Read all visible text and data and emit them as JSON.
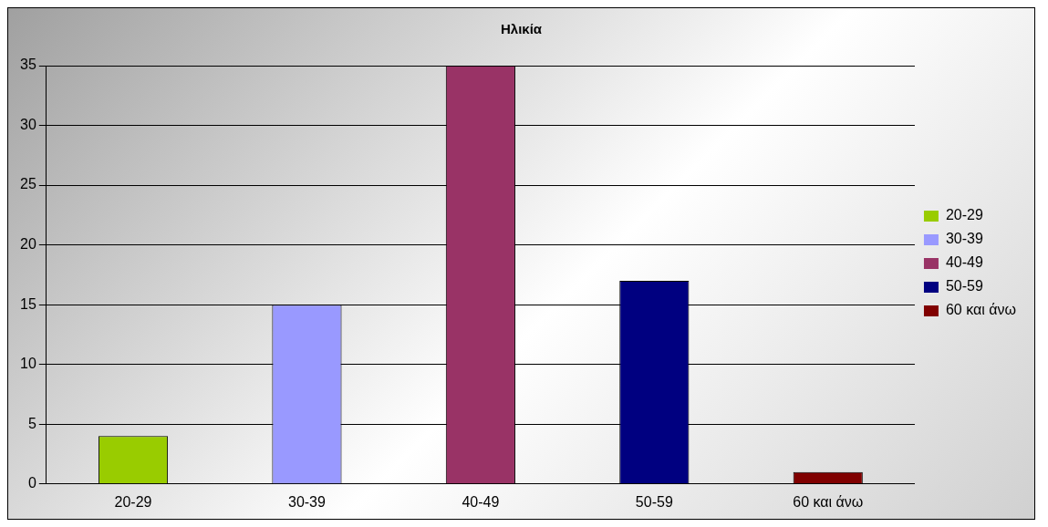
{
  "chart_data": {
    "type": "bar",
    "title": "Ηλικία",
    "categories": [
      "20-29",
      "30-39",
      "40-49",
      "50-59",
      "60 και άνω"
    ],
    "series": [
      {
        "name": "20-29",
        "color": "#99cc00",
        "values": [
          4,
          null,
          null,
          null,
          null
        ]
      },
      {
        "name": "30-39",
        "color": "#9999ff",
        "values": [
          null,
          15,
          null,
          null,
          null
        ]
      },
      {
        "name": "40-49",
        "color": "#993366",
        "values": [
          null,
          null,
          35,
          null,
          null
        ]
      },
      {
        "name": "50-59",
        "color": "#000080",
        "values": [
          null,
          null,
          null,
          17,
          null
        ]
      },
      {
        "name": "60 και άνω",
        "color": "#800000",
        "values": [
          null,
          null,
          null,
          null,
          1
        ]
      }
    ],
    "ylim": [
      0,
      35
    ],
    "yticks": [
      0,
      5,
      10,
      15,
      20,
      25,
      30,
      35
    ],
    "grid": "y",
    "legend": "right"
  }
}
